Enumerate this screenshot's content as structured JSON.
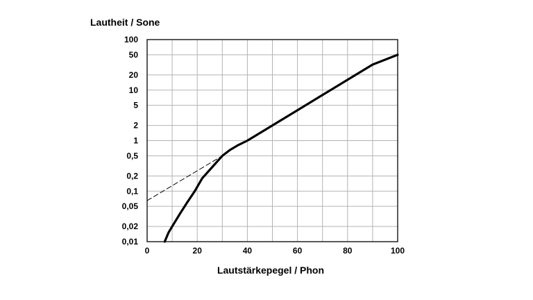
{
  "chart_data": {
    "type": "line",
    "title": "",
    "ylabel": "Lautheit / Sone",
    "xlabel": "Lautstärkepegel / Phon",
    "xlim": [
      0,
      100
    ],
    "y_scale": "log",
    "ylim": [
      0.01,
      100
    ],
    "x_ticks": [
      {
        "value": 0,
        "label": "0"
      },
      {
        "value": 20,
        "label": "20"
      },
      {
        "value": 40,
        "label": "40"
      },
      {
        "value": 60,
        "label": "60"
      },
      {
        "value": 80,
        "label": "80"
      },
      {
        "value": 100,
        "label": "100"
      }
    ],
    "x_grid_step": 10,
    "y_ticks": [
      {
        "value": 0.01,
        "label": "0,01"
      },
      {
        "value": 0.02,
        "label": "0,02"
      },
      {
        "value": 0.05,
        "label": "0,05"
      },
      {
        "value": 0.1,
        "label": "0,1"
      },
      {
        "value": 0.2,
        "label": "0,2"
      },
      {
        "value": 0.5,
        "label": "0,5"
      },
      {
        "value": 1,
        "label": "1"
      },
      {
        "value": 2,
        "label": "2"
      },
      {
        "value": 5,
        "label": "5"
      },
      {
        "value": 10,
        "label": "10"
      },
      {
        "value": 20,
        "label": "20"
      },
      {
        "value": 50,
        "label": "50"
      },
      {
        "value": 100,
        "label": "100"
      }
    ],
    "grid": true,
    "series": [
      {
        "style": "solid",
        "color": "#000000",
        "points": [
          [
            7,
            0.01
          ],
          [
            8.5,
            0.015
          ],
          [
            10,
            0.02
          ],
          [
            13,
            0.035
          ],
          [
            16,
            0.06
          ],
          [
            19,
            0.1
          ],
          [
            22,
            0.18
          ],
          [
            26,
            0.3
          ],
          [
            30,
            0.5
          ],
          [
            33,
            0.65
          ],
          [
            36,
            0.8
          ],
          [
            40,
            1
          ],
          [
            50,
            2
          ],
          [
            60,
            4
          ],
          [
            70,
            8
          ],
          [
            80,
            16
          ],
          [
            90,
            32
          ],
          [
            100,
            50
          ]
        ]
      },
      {
        "style": "dashed",
        "color": "#000000",
        "points": [
          [
            0,
            0.065
          ],
          [
            30,
            0.5
          ]
        ]
      }
    ]
  }
}
